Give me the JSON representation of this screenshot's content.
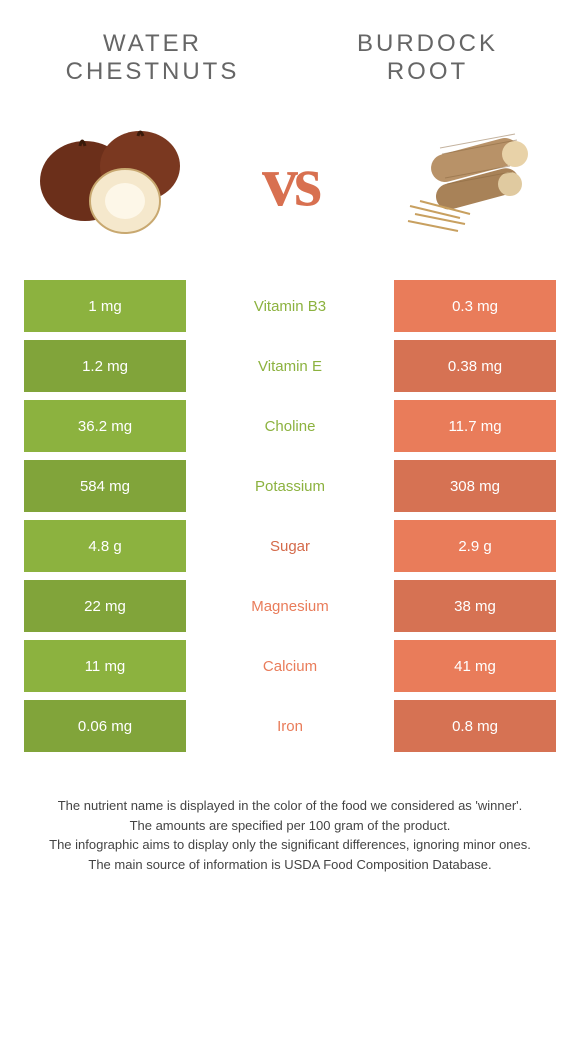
{
  "titles": {
    "left": "WATER CHESTNUTS",
    "right": "BURDOCK ROOT"
  },
  "vs": "vs",
  "colors": {
    "left": "#8cb23f",
    "right": "#e97c5a",
    "sugar": "#d46a4a",
    "row_bg_alt_shade": 0.92
  },
  "rows": [
    {
      "nutrient": "Vitamin B3",
      "left": "1 mg",
      "right": "0.3 mg",
      "winner": "left"
    },
    {
      "nutrient": "Vitamin E",
      "left": "1.2 mg",
      "right": "0.38 mg",
      "winner": "left"
    },
    {
      "nutrient": "Choline",
      "left": "36.2 mg",
      "right": "11.7 mg",
      "winner": "left"
    },
    {
      "nutrient": "Potassium",
      "left": "584 mg",
      "right": "308 mg",
      "winner": "left"
    },
    {
      "nutrient": "Sugar",
      "left": "4.8 g",
      "right": "2.9 g",
      "winner": "sugar"
    },
    {
      "nutrient": "Magnesium",
      "left": "22 mg",
      "right": "38 mg",
      "winner": "right"
    },
    {
      "nutrient": "Calcium",
      "left": "11 mg",
      "right": "41 mg",
      "winner": "right"
    },
    {
      "nutrient": "Iron",
      "left": "0.06 mg",
      "right": "0.8 mg",
      "winner": "right"
    }
  ],
  "footer": [
    "The nutrient name is displayed in the color of the food we considered as 'winner'.",
    "The amounts are specified per 100 gram of the product.",
    "The infographic aims to display only the significant differences, ignoring minor ones.",
    "The main source of information is USDA Food Composition Database."
  ]
}
